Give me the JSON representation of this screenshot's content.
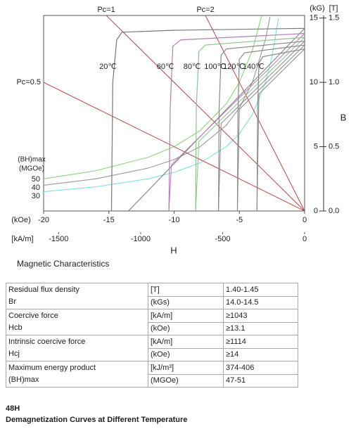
{
  "chart_data": {
    "type": "line",
    "xlabel": "H",
    "ylabel": "B",
    "x_unit": "(kOe)",
    "x2_unit": "[kA/m]",
    "y_unit": "(kG)",
    "y2_unit": "[T]",
    "bh_label": "(BH)max",
    "bh_unit": "(MGOe)",
    "xlim": [
      -20,
      0
    ],
    "xticks": [
      -20,
      -15,
      -10,
      -5,
      0
    ],
    "x2lim": [
      -1591.5,
      0
    ],
    "x2ticks": [
      -1500,
      -1000,
      -500,
      0
    ],
    "ylim": [
      0,
      15.2
    ],
    "yticks": [
      0,
      5,
      10,
      15
    ],
    "y2lim": [
      0,
      1.52
    ],
    "y2ticks": [
      {
        "value": 0,
        "label": "0.0"
      },
      0.5,
      {
        "value": 1,
        "label": "1.0"
      },
      1.5
    ],
    "series": [
      {
        "name": "20℃",
        "color": "#777777",
        "x": [
          0,
          -10,
          -14,
          -14.4,
          -14.7,
          -14.8
        ],
        "values": [
          14.2,
          14.05,
          13.9,
          13.3,
          10,
          0
        ]
      },
      {
        "name": "60℃",
        "color": "#b080b0",
        "x": [
          0,
          -9.5,
          -10.1,
          -10.3,
          -10.4
        ],
        "values": [
          13.8,
          13.3,
          12.8,
          8,
          0
        ]
      },
      {
        "name": "80℃",
        "color": "#90c090",
        "x": [
          0,
          -7.6,
          -8.1,
          -8.3,
          -8.35
        ],
        "values": [
          13.5,
          12.9,
          12.4,
          8,
          0
        ]
      },
      {
        "name": "100℃",
        "color": "#888888",
        "x": [
          0,
          -6,
          -6.4,
          -6.55,
          -6.6
        ],
        "values": [
          13.2,
          12.6,
          12.1,
          8,
          0
        ]
      },
      {
        "name": "120℃",
        "color": "#888888",
        "x": [
          0,
          -4.6,
          -5.0,
          -5.1,
          -5.15
        ],
        "values": [
          12.9,
          12.3,
          11.8,
          8,
          0
        ]
      },
      {
        "name": "140℃",
        "color": "#888888",
        "x": [
          0,
          -3.2,
          -3.5,
          -3.6,
          -3.65
        ],
        "values": [
          12.6,
          12.0,
          11.5,
          8,
          0
        ]
      }
    ],
    "normal_curves": [
      {
        "color": "#777777",
        "x": [
          0,
          -13.5
        ],
        "values": [
          14.2,
          0
        ]
      },
      {
        "color": "#b080b0",
        "x": [
          0,
          -10.2,
          -10.4
        ],
        "values": [
          13.8,
          3.6,
          0
        ]
      },
      {
        "color": "#90c090",
        "x": [
          0,
          -8.1,
          -8.35
        ],
        "values": [
          13.5,
          5.4,
          0
        ]
      },
      {
        "color": "#888888",
        "x": [
          0,
          -6.4,
          -6.6
        ],
        "values": [
          13.2,
          6.8,
          0
        ]
      },
      {
        "color": "#888888",
        "x": [
          0,
          -5.0,
          -5.15
        ],
        "values": [
          12.9,
          7.9,
          0
        ]
      },
      {
        "color": "#888888",
        "x": [
          0,
          -3.5,
          -3.65
        ],
        "values": [
          12.6,
          9.1,
          0
        ]
      }
    ],
    "load_lines": [
      {
        "name": "Pc=1",
        "color": "#b04848",
        "x": [
          0,
          -15.2
        ],
        "values": [
          0,
          15.2
        ]
      },
      {
        "name": "Pc=2",
        "color": "#b04848",
        "x": [
          0,
          -7.6
        ],
        "values": [
          0,
          15.2
        ]
      },
      {
        "name": "Pc=0.5",
        "color": "#b04848",
        "x": [
          0,
          -20
        ],
        "values": [
          0,
          10
        ]
      }
    ],
    "energy_curves": [
      {
        "name": "50",
        "color": "#8fd080",
        "x": [
          -20,
          -16,
          -12,
          -10,
          -8,
          -6,
          -5,
          -4,
          -3.3
        ],
        "values": [
          2.5,
          3.13,
          4.17,
          5,
          6.25,
          8.33,
          10,
          12.5,
          15.15
        ]
      },
      {
        "name": "40",
        "color": "#999999",
        "x": [
          -20,
          -16,
          -12,
          -10,
          -8,
          -6,
          -5,
          -4,
          -3,
          -2.65
        ],
        "values": [
          2,
          2.5,
          3.33,
          4,
          5,
          6.67,
          8,
          10,
          13.33,
          15.09
        ]
      },
      {
        "name": "30",
        "color": "#7fe0e0",
        "x": [
          -20,
          -16,
          -12,
          -10,
          -8,
          -6,
          -5,
          -4,
          -3,
          -2.5,
          -2
        ],
        "values": [
          1.5,
          1.88,
          2.5,
          3,
          3.75,
          5,
          6,
          7.5,
          10,
          12,
          15
        ]
      }
    ]
  },
  "caption": "Magnetic Characteristics",
  "table": {
    "rows": [
      {
        "label": [
          "Residual flux density",
          "Br"
        ],
        "units": [
          "[T]",
          "(kGs)"
        ],
        "values": [
          "1.40-1.45",
          "14.0-14.5"
        ]
      },
      {
        "label": [
          "Coercive force",
          "Hcb"
        ],
        "units": [
          "[kA/m]",
          "(kOe)"
        ],
        "values": [
          "≥1043",
          "≥13.1"
        ]
      },
      {
        "label": [
          "Intrinsic coercive force",
          "Hcj"
        ],
        "units": [
          "[kA/m]",
          "(kOe)"
        ],
        "values": [
          "≥1114",
          "≥14"
        ]
      },
      {
        "label": [
          "Maximum energy product",
          "(BH)max"
        ],
        "units": [
          "[kJ/m³]",
          "(MGOe)"
        ],
        "values": [
          "374-406",
          "47-51"
        ]
      }
    ]
  },
  "footer": {
    "grade": "48H",
    "title": "Demagnetization Curves at Different Temperature"
  }
}
